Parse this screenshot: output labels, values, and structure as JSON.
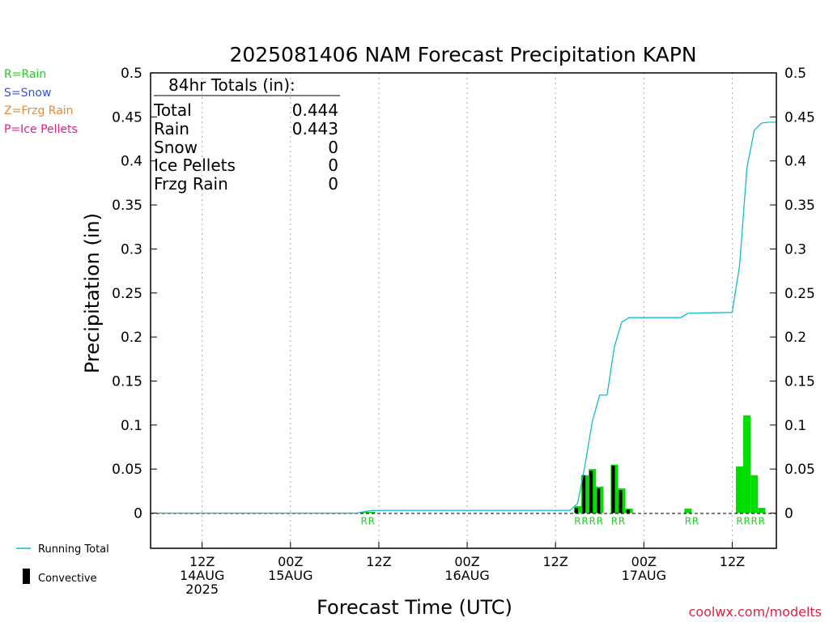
{
  "chart_data": {
    "type": "bar",
    "title": "2025081406 NAM Forecast Precipitation KAPN",
    "ylabel": "Precipitation (in)",
    "xlabel": "Forecast Time (UTC)",
    "ylim": [
      -0.04,
      0.5
    ],
    "y_ticks": [
      0,
      0.05,
      0.1,
      0.15,
      0.2,
      0.25,
      0.3,
      0.35,
      0.4,
      0.45,
      0.5
    ],
    "y_tick_labels": [
      "0",
      "0.05",
      "0.1",
      "0.15",
      "0.2",
      "0.25",
      "0.3",
      "0.35",
      "0.4",
      "0.45",
      "0.5"
    ],
    "x_range_hours": [
      -1,
      84
    ],
    "x_ticks": [
      {
        "hour": 6,
        "line1": "12Z",
        "line2": "14AUG",
        "line3": "2025"
      },
      {
        "hour": 18,
        "line1": "00Z",
        "line2": "15AUG",
        "line3": ""
      },
      {
        "hour": 30,
        "line1": "12Z",
        "line2": "",
        "line3": ""
      },
      {
        "hour": 42,
        "line1": "00Z",
        "line2": "16AUG",
        "line3": ""
      },
      {
        "hour": 54,
        "line1": "12Z",
        "line2": "",
        "line3": ""
      },
      {
        "hour": 66,
        "line1": "00Z",
        "line2": "17AUG",
        "line3": ""
      },
      {
        "hour": 78,
        "line1": "12Z",
        "line2": "",
        "line3": ""
      }
    ],
    "grid": "vertical-dotted",
    "bars": [
      {
        "hour": 28,
        "total": 0.0015,
        "convective": 0
      },
      {
        "hour": 29,
        "total": 0.0015,
        "convective": 0
      },
      {
        "hour": 57,
        "total": 0.008,
        "convective": 0.006
      },
      {
        "hour": 58,
        "total": 0.043,
        "convective": 0.043
      },
      {
        "hour": 59,
        "total": 0.05,
        "convective": 0.048
      },
      {
        "hour": 60,
        "total": 0.03,
        "convective": 0.028
      },
      {
        "hour": 62,
        "total": 0.055,
        "convective": 0.054
      },
      {
        "hour": 63,
        "total": 0.028,
        "convective": 0.026
      },
      {
        "hour": 64,
        "total": 0.005,
        "convective": 0.004
      },
      {
        "hour": 72,
        "total": 0.005,
        "convective": 0
      },
      {
        "hour": 79,
        "total": 0.053,
        "convective": 0
      },
      {
        "hour": 80,
        "total": 0.111,
        "convective": 0
      },
      {
        "hour": 81,
        "total": 0.043,
        "convective": 0
      },
      {
        "hour": 82,
        "total": 0.006,
        "convective": 0
      }
    ],
    "running_total": {
      "x": [
        0,
        27,
        28,
        29,
        56,
        57,
        58,
        59,
        60,
        61,
        62,
        63,
        64,
        71,
        72,
        78,
        79,
        80,
        81,
        82,
        83,
        84
      ],
      "y": [
        0,
        0,
        0.0015,
        0.003,
        0.003,
        0.011,
        0.054,
        0.104,
        0.134,
        0.134,
        0.189,
        0.217,
        0.222,
        0.222,
        0.227,
        0.228,
        0.281,
        0.392,
        0.435,
        0.443,
        0.444,
        0.444
      ],
      "name": "Running Total"
    },
    "precip_type_markers": [
      {
        "hour": 28,
        "label": "R"
      },
      {
        "hour": 29,
        "label": "R"
      },
      {
        "hour": 57,
        "label": "R"
      },
      {
        "hour": 58,
        "label": "R"
      },
      {
        "hour": 59,
        "label": "R"
      },
      {
        "hour": 60,
        "label": "R"
      },
      {
        "hour": 62,
        "label": "R"
      },
      {
        "hour": 63,
        "label": "R"
      },
      {
        "hour": 72,
        "label": "R"
      },
      {
        "hour": 73,
        "label": "R"
      },
      {
        "hour": 79,
        "label": "R"
      },
      {
        "hour": 80,
        "label": "R"
      },
      {
        "hour": 81,
        "label": "R"
      },
      {
        "hour": 82,
        "label": "R"
      }
    ],
    "totals_box": {
      "heading": "84hr Totals (in):",
      "rows": [
        {
          "label": "Total",
          "value": "0.444"
        },
        {
          "label": "Rain",
          "value": "0.443"
        },
        {
          "label": "Snow",
          "value": "0"
        },
        {
          "label": "Ice Pellets",
          "value": "0"
        },
        {
          "label": "Frzg Rain",
          "value": "0"
        }
      ]
    },
    "type_legend": [
      {
        "text": "R=Rain",
        "color": "#22cc22"
      },
      {
        "text": "S=Snow",
        "color": "#3355dd"
      },
      {
        "text": "Z=Frzg Rain",
        "color": "#ee8833"
      },
      {
        "text": "P=Ice Pellets",
        "color": "#dd2288"
      }
    ],
    "series_legend": [
      {
        "text": "Running Total",
        "kind": "line",
        "color": "#11bbcc"
      },
      {
        "text": "Convective",
        "kind": "bar",
        "color": "#000000"
      }
    ],
    "colors": {
      "bar": "#00dd00",
      "convective": "#000000",
      "running_total": "#11bbcc",
      "marker": "#22cc22",
      "grid": "#aaaaaa"
    }
  },
  "credit": "coolwx.com/modelts"
}
